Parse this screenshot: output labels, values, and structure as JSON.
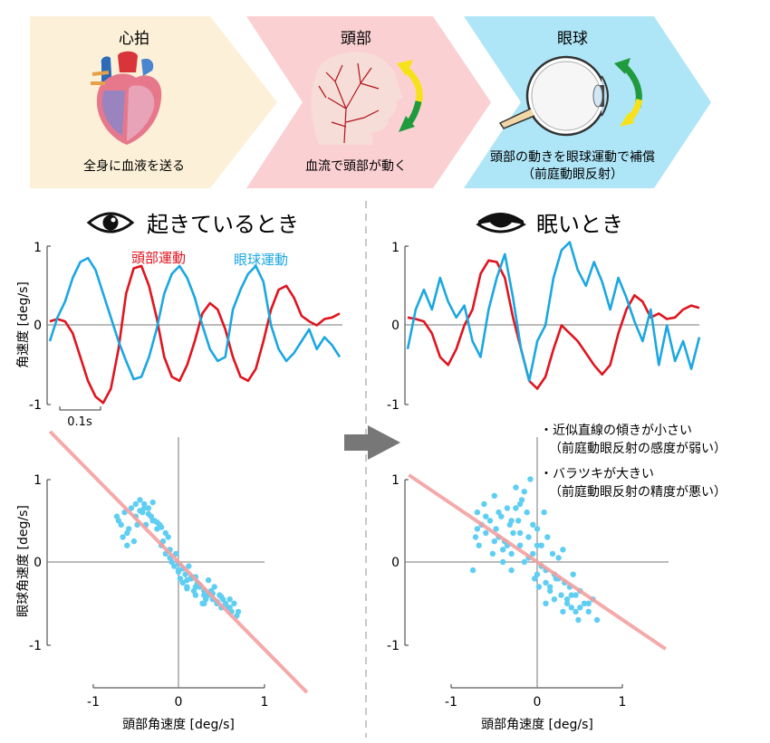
{
  "stages": [
    {
      "title": "心拍",
      "caption": [
        "全身に血液を送る"
      ],
      "color": "#fcf0d8"
    },
    {
      "title": "頭部",
      "caption": [
        "血流で頭部が動く"
      ],
      "color": "#fbd0d2"
    },
    {
      "title": "眼球",
      "caption": [
        "頭部の動きを眼球運動で補償",
        "（前庭動眼反射）"
      ],
      "color": "#aee6f8"
    }
  ],
  "awake": {
    "title": "起きているとき",
    "icon": "open-eye-icon"
  },
  "sleepy": {
    "title": "眠いとき",
    "icon": "closed-eye-icon"
  },
  "legend": {
    "head": "頭部運動",
    "eye": "眼球運動"
  },
  "colors": {
    "head": "#e0141e",
    "eye": "#1ba7e1",
    "scatter": "#5fcef3",
    "fit": "#f4a0a0"
  },
  "time_axis": {
    "ylabel": "角速度 [deg/s]",
    "scale_bar": "0.1s",
    "yticks": [
      "1",
      "0",
      "-1"
    ]
  },
  "scatter_axis": {
    "xlabel": "頭部角速度 [deg/s]",
    "ylabel": "眼球角速度 [deg/s]",
    "xticks": [
      "-1",
      "0",
      "1"
    ],
    "yticks": [
      "1",
      "0",
      "-1"
    ]
  },
  "notes": [
    {
      "bullet": "・近似直線の傾きが小さい",
      "sub": "（前庭動眼反射の感度が弱い）"
    },
    {
      "bullet": "・バラツキが大きい",
      "sub": "（前庭動眼反射の精度が悪い）"
    }
  ],
  "chart_data": [
    {
      "type": "line",
      "panel": "awake-time",
      "ylim": [
        -1,
        1
      ],
      "series": [
        {
          "name": "頭部運動",
          "values": [
            0.05,
            0.08,
            0.05,
            -0.1,
            -0.4,
            -0.7,
            -0.9,
            -0.98,
            -0.8,
            -0.3,
            0.4,
            0.72,
            0.75,
            0.5,
            0.1,
            -0.4,
            -0.65,
            -0.7,
            -0.5,
            -0.2,
            0.15,
            0.28,
            0.2,
            -0.05,
            -0.4,
            -0.65,
            -0.7,
            -0.55,
            -0.2,
            0.2,
            0.45,
            0.5,
            0.35,
            0.12,
            0.05,
            0.0,
            0.08,
            0.1,
            0.15
          ]
        },
        {
          "name": "眼球運動",
          "values": [
            -0.2,
            0.1,
            0.3,
            0.6,
            0.8,
            0.85,
            0.7,
            0.4,
            0.1,
            -0.2,
            -0.45,
            -0.68,
            -0.65,
            -0.4,
            -0.05,
            0.4,
            0.65,
            0.75,
            0.6,
            0.35,
            0.0,
            -0.3,
            -0.45,
            -0.4,
            0.2,
            0.45,
            0.65,
            0.75,
            0.55,
            0.0,
            -0.3,
            -0.45,
            -0.35,
            -0.2,
            -0.05,
            -0.3,
            -0.15,
            -0.25,
            -0.4
          ]
        }
      ]
    },
    {
      "type": "line",
      "panel": "sleepy-time",
      "ylim": [
        -1,
        1
      ],
      "series": [
        {
          "name": "頭部運動",
          "values": [
            0.1,
            0.08,
            0.05,
            -0.1,
            -0.4,
            -0.5,
            -0.3,
            0.0,
            0.2,
            0.65,
            0.82,
            0.8,
            0.6,
            0.1,
            -0.3,
            -0.7,
            -0.8,
            -0.65,
            -0.3,
            0.0,
            -0.1,
            -0.2,
            -0.35,
            -0.5,
            -0.62,
            -0.5,
            -0.1,
            0.2,
            0.38,
            0.3,
            0.1,
            0.15,
            0.08,
            0.1,
            0.2,
            0.25,
            0.22
          ]
        },
        {
          "name": "眼球運動",
          "values": [
            -0.3,
            0.2,
            0.45,
            0.2,
            0.6,
            0.3,
            0.1,
            0.25,
            -0.2,
            -0.4,
            0.2,
            0.6,
            0.9,
            0.35,
            -0.3,
            -0.7,
            -0.2,
            0.0,
            0.6,
            0.95,
            1.05,
            0.7,
            0.5,
            0.8,
            0.55,
            0.2,
            0.6,
            0.35,
            0.05,
            -0.2,
            0.2,
            -0.5,
            0.0,
            -0.45,
            -0.2,
            -0.55,
            -0.15
          ]
        }
      ]
    },
    {
      "type": "scatter",
      "panel": "awake-scatter",
      "xlabel": "頭部角速度 [deg/s]",
      "ylabel": "眼球角速度 [deg/s]",
      "xlim": [
        -1,
        1
      ],
      "ylim": [
        -1,
        1
      ],
      "fit_line": {
        "slope": -1.05,
        "intercept": 0.0
      },
      "x": [
        -0.72,
        -0.7,
        -0.67,
        -0.65,
        -0.63,
        -0.6,
        -0.58,
        -0.55,
        -0.52,
        -0.5,
        -0.48,
        -0.45,
        -0.42,
        -0.4,
        -0.38,
        -0.35,
        -0.32,
        -0.3,
        -0.28,
        -0.25,
        -0.22,
        -0.2,
        -0.18,
        -0.15,
        -0.12,
        -0.1,
        -0.08,
        -0.05,
        -0.03,
        0.0,
        0.02,
        0.05,
        0.08,
        0.1,
        0.12,
        0.15,
        0.18,
        0.2,
        0.22,
        0.25,
        0.28,
        0.3,
        0.32,
        0.35,
        0.38,
        0.4,
        0.42,
        0.45,
        0.48,
        0.5,
        0.52,
        0.55,
        0.58,
        0.6,
        0.62,
        0.65,
        0.68,
        0.7,
        -0.6,
        -0.5,
        -0.4,
        -0.3,
        -0.2,
        -0.1,
        0.0,
        0.1,
        0.2,
        0.3,
        0.4,
        0.5,
        0.6,
        0.05,
        0.15,
        0.25,
        0.35,
        0.45,
        -0.15,
        -0.25,
        -0.35,
        -0.45,
        0.0,
        0.1,
        0.2,
        0.3
      ],
      "y": [
        0.55,
        0.5,
        0.45,
        0.3,
        0.6,
        0.35,
        0.4,
        0.65,
        0.25,
        0.7,
        0.45,
        0.75,
        0.6,
        0.7,
        0.45,
        0.65,
        0.55,
        0.72,
        0.5,
        0.4,
        0.45,
        0.2,
        0.25,
        0.1,
        0.3,
        0.05,
        0.0,
        -0.05,
        0.1,
        -0.1,
        -0.2,
        -0.25,
        -0.15,
        -0.3,
        -0.05,
        -0.2,
        -0.35,
        -0.4,
        -0.25,
        -0.3,
        -0.5,
        -0.35,
        -0.45,
        -0.4,
        -0.35,
        -0.45,
        -0.3,
        -0.5,
        -0.4,
        -0.55,
        -0.45,
        -0.5,
        -0.55,
        -0.45,
        -0.6,
        -0.5,
        -0.65,
        -0.6,
        0.2,
        0.55,
        0.65,
        0.5,
        0.42,
        0.15,
        -0.12,
        -0.22,
        -0.3,
        -0.4,
        -0.38,
        -0.42,
        -0.55,
        -0.08,
        -0.18,
        -0.28,
        -0.22,
        -0.48,
        0.35,
        0.48,
        0.58,
        0.62,
        -0.02,
        -0.32,
        -0.18,
        -0.5
      ]
    },
    {
      "type": "scatter",
      "panel": "sleepy-scatter",
      "xlabel": "頭部角速度 [deg/s]",
      "ylabel": "",
      "xlim": [
        -1,
        1
      ],
      "ylim": [
        -1,
        1
      ],
      "fit_line": {
        "slope": -0.7,
        "intercept": 0.0
      },
      "x": [
        -0.75,
        -0.72,
        -0.7,
        -0.68,
        -0.65,
        -0.62,
        -0.6,
        -0.55,
        -0.52,
        -0.5,
        -0.48,
        -0.45,
        -0.42,
        -0.4,
        -0.38,
        -0.35,
        -0.32,
        -0.3,
        -0.28,
        -0.25,
        -0.22,
        -0.2,
        -0.18,
        -0.15,
        -0.12,
        -0.1,
        -0.08,
        -0.05,
        -0.03,
        0.0,
        0.02,
        0.05,
        0.08,
        0.1,
        0.12,
        0.15,
        0.18,
        0.2,
        0.22,
        0.25,
        0.28,
        0.3,
        0.32,
        0.35,
        0.38,
        0.4,
        0.42,
        0.45,
        0.48,
        0.5,
        0.55,
        0.6,
        0.65,
        0.7,
        -0.7,
        -0.6,
        -0.5,
        -0.4,
        -0.3,
        -0.2,
        -0.1,
        0.0,
        0.1,
        0.2,
        0.3,
        0.4,
        0.5,
        0.6,
        -0.15,
        -0.25,
        0.05,
        0.15,
        0.25,
        0.35,
        -0.45,
        0.45,
        -0.35,
        -0.05,
        0.0,
        0.1,
        -0.2,
        -0.3
      ],
      "y": [
        -0.1,
        0.3,
        0.6,
        0.2,
        0.45,
        0.7,
        0.35,
        0.5,
        0.1,
        0.8,
        0.4,
        0.3,
        0.55,
        0.0,
        0.25,
        0.65,
        0.45,
        -0.1,
        0.35,
        0.9,
        0.5,
        0.2,
        0.75,
        0.0,
        0.6,
        0.3,
        1.0,
        0.1,
        -0.2,
        0.4,
        -0.3,
        0.2,
        0.6,
        -0.1,
        0.3,
        -0.35,
        0.1,
        -0.45,
        -0.2,
        0.05,
        -0.4,
        -0.6,
        -0.25,
        -0.5,
        -0.3,
        -0.55,
        -0.15,
        -0.4,
        -0.7,
        -0.35,
        -0.5,
        -0.6,
        -0.45,
        -0.7,
        0.4,
        0.55,
        0.25,
        0.15,
        0.5,
        0.35,
        0.05,
        0.2,
        -0.25,
        -0.15,
        0.15,
        -0.4,
        -0.55,
        -0.5,
        0.85,
        0.65,
        -0.05,
        -0.3,
        -0.2,
        -0.45,
        0.6,
        -0.6,
        0.2,
        0.45,
        -0.15,
        -0.5,
        0.7,
        0.1
      ]
    }
  ]
}
